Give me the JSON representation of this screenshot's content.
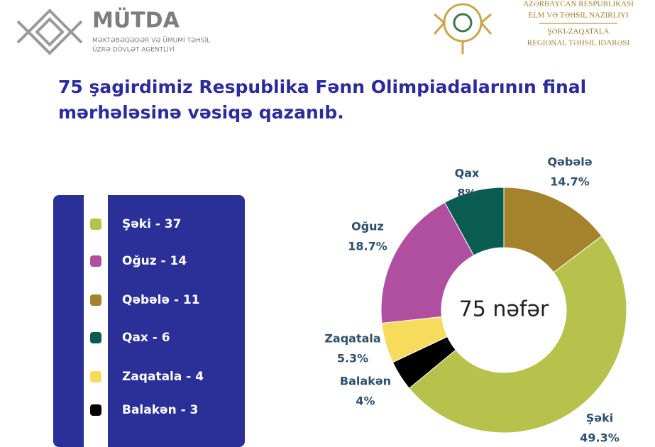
{
  "header": {
    "left": {
      "name": "MÜTDA",
      "line1": "MƏKTƏBƏQƏDƏR VƏ ÜMUMİ TƏHSİL",
      "line2": "ÜZRƏ DÖVLƏT AGENTLİYİ"
    },
    "right": {
      "line1": "AZƏRBAYCAN RESPUBLIKASI",
      "line2": "ELM VƏ TƏHSIL NAZIRLIYI",
      "line3": "ŞƏKI-ZAQATALA",
      "line4": "REGIONAL TƏHSIL IDARƏSI"
    }
  },
  "chart_data": {
    "type": "donut",
    "title": [
      "75 şagirdimiz Respublika Fənn Olimpiadalarının final",
      "mərhələsinə vəsiqə qazanıb."
    ],
    "center_label": "75 nəfər",
    "categories": [
      "Qəbələ",
      "Şəki",
      "Balakən",
      "Zaqatala",
      "Oğuz",
      "Qax"
    ],
    "values": [
      14.7,
      49.3,
      4,
      5.3,
      18.7,
      8
    ],
    "value_labels": [
      "14.7%",
      "49.3%",
      "4%",
      "5.3%",
      "18.7%",
      "8%"
    ],
    "colors": [
      "#a4832c",
      "#b6c24b",
      "#000000",
      "#f7dc5b",
      "#b04f9f",
      "#0b5c50"
    ],
    "legend": [
      {
        "text": "Şəki - 37",
        "color": "#b6c24b"
      },
      {
        "text": "Oğuz - 14",
        "color": "#b04f9f"
      },
      {
        "text": "Qəbələ - 11",
        "color": "#a4832c"
      },
      {
        "text": "Qax - 6",
        "color": "#0b5c50"
      },
      {
        "text": "Zaqatala - 4",
        "color": "#f7dc5b"
      },
      {
        "text": "Balakən - 3",
        "color": "#000000"
      }
    ]
  }
}
